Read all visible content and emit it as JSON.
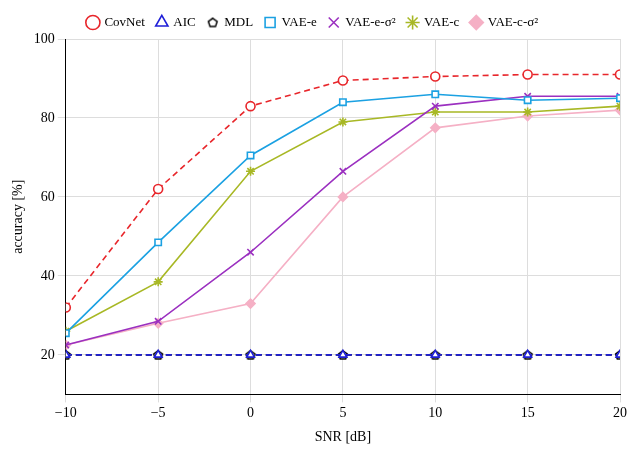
{
  "chart_data": {
    "type": "line",
    "x_label": "SNR [dB]",
    "y_label": "accuracy [%]",
    "x": [
      -10,
      -5,
      0,
      5,
      10,
      15,
      20
    ],
    "xlim": [
      -10,
      20
    ],
    "xticks": [
      -10,
      -5,
      0,
      5,
      10,
      15,
      20
    ],
    "ylim": [
      10,
      100
    ],
    "yticks": [
      20,
      40,
      60,
      80,
      100
    ],
    "grid": true,
    "legend": "top",
    "series": [
      {
        "name": "CovNet",
        "color": "#e8262b",
        "marker": "circle",
        "line_style": "dashed",
        "values": [
          32,
          62,
          83,
          89.5,
          90.5,
          91,
          91
        ]
      },
      {
        "name": "AIC",
        "color": "#1f1fd8",
        "marker": "triangle",
        "line_style": "dashed",
        "values": [
          20,
          20,
          20,
          20,
          20,
          20,
          20
        ]
      },
      {
        "name": "MDL",
        "color": "#000000",
        "marker": "pentagon",
        "line_style": "dashed",
        "values": [
          20,
          20,
          20,
          20,
          20,
          20,
          20
        ]
      },
      {
        "name": "VAE-e",
        "color": "#1ba1e2",
        "marker": "square",
        "line_style": "solid",
        "values": [
          25.5,
          48.5,
          70.5,
          84,
          86,
          84.5,
          85
        ]
      },
      {
        "name": "VAE-e-σ²",
        "color": "#9b30c0",
        "marker": "x",
        "line_style": "solid",
        "values": [
          22.5,
          28.5,
          46,
          66.5,
          83,
          85.5,
          85.5
        ]
      },
      {
        "name": "VAE-c",
        "color": "#a8b825",
        "marker": "star",
        "line_style": "solid",
        "values": [
          26,
          38.5,
          66.5,
          79,
          81.5,
          81.5,
          83
        ]
      },
      {
        "name": "VAE-c-σ²",
        "color": "#f5b0c5",
        "marker": "diamond",
        "line_style": "solid",
        "values": [
          22.5,
          28,
          33,
          60,
          77.5,
          80.5,
          82
        ]
      }
    ]
  }
}
